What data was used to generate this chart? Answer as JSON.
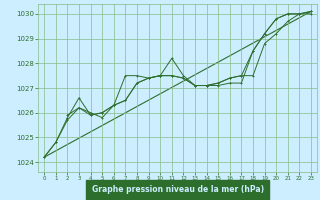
{
  "title": "Graphe pression niveau de la mer (hPa)",
  "bg_color": "#cceeff",
  "grid_color": "#88bb88",
  "line_color": "#2d6e2d",
  "xlabel_bg": "#2d6e2d",
  "xlabel_fg": "#cceeff",
  "xlim": [
    -0.5,
    23.5
  ],
  "ylim": [
    1023.6,
    1030.4
  ],
  "xticks": [
    0,
    1,
    2,
    3,
    4,
    5,
    6,
    7,
    8,
    9,
    10,
    11,
    12,
    13,
    14,
    15,
    16,
    17,
    18,
    19,
    20,
    21,
    22,
    23
  ],
  "yticks": [
    1024,
    1025,
    1026,
    1027,
    1028,
    1029,
    1030
  ],
  "series1_x": [
    0,
    1,
    2,
    3,
    4,
    5,
    6,
    7,
    8,
    9,
    10,
    11,
    12,
    13,
    14,
    15,
    16,
    17,
    18,
    19,
    20,
    21,
    22,
    23
  ],
  "series1_y": [
    1024.2,
    1024.8,
    1025.8,
    1026.6,
    1025.9,
    1026.0,
    1026.3,
    1027.5,
    1027.5,
    1027.4,
    1027.5,
    1028.2,
    1027.5,
    1027.1,
    1027.1,
    1027.1,
    1027.2,
    1027.2,
    1028.5,
    1029.2,
    1029.8,
    1030.0,
    1030.0,
    1030.1
  ],
  "series2_x": [
    0,
    1,
    2,
    3,
    4,
    5,
    6,
    7,
    8,
    9,
    10,
    11,
    12,
    13,
    14,
    15,
    16,
    17,
    18,
    19,
    20,
    21,
    22,
    23
  ],
  "series2_y": [
    1024.2,
    1024.8,
    1025.7,
    1026.2,
    1026.0,
    1025.8,
    1026.3,
    1026.5,
    1027.2,
    1027.4,
    1027.5,
    1027.5,
    1027.4,
    1027.1,
    1027.1,
    1027.2,
    1027.4,
    1027.5,
    1027.5,
    1028.8,
    1029.2,
    1029.7,
    1030.0,
    1030.0
  ],
  "series3_x": [
    2,
    3,
    4,
    5,
    6,
    7,
    8,
    9,
    10,
    11,
    12,
    13,
    14,
    15,
    16,
    17,
    18,
    19,
    20,
    21,
    22,
    23
  ],
  "series3_y": [
    1025.9,
    1026.2,
    1025.9,
    1026.0,
    1026.3,
    1026.5,
    1027.2,
    1027.4,
    1027.5,
    1027.5,
    1027.4,
    1027.1,
    1027.1,
    1027.2,
    1027.4,
    1027.5,
    1028.5,
    1029.2,
    1029.8,
    1030.0,
    1030.0,
    1030.1
  ],
  "trendline_x": [
    0,
    23
  ],
  "trendline_y": [
    1024.2,
    1030.1
  ]
}
